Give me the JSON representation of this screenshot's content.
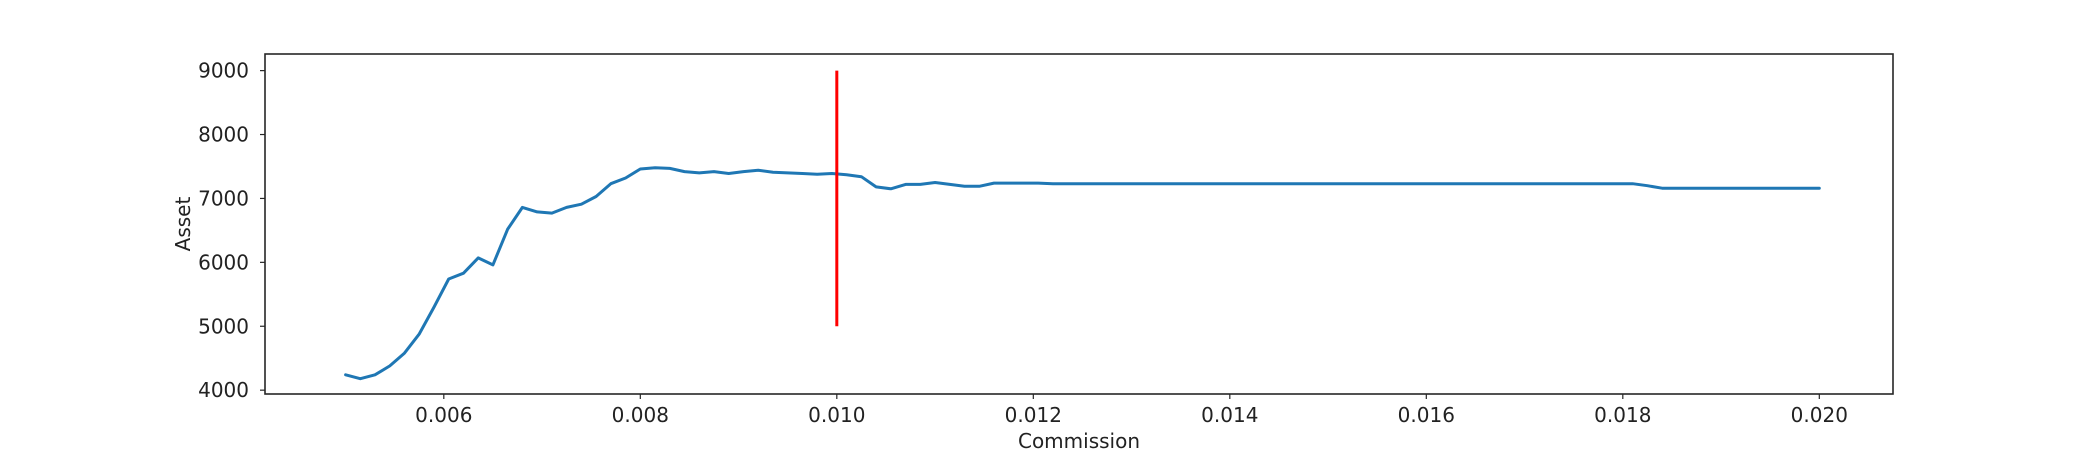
{
  "chart_data": {
    "type": "line",
    "title": "",
    "xlabel": "Commission",
    "ylabel": "Asset",
    "xlim": [
      0.00418,
      0.02075
    ],
    "ylim": [
      3940,
      9260
    ],
    "xticks": [
      0.006,
      0.008,
      0.01,
      0.012,
      0.014,
      0.016,
      0.018,
      0.02
    ],
    "xtick_labels": [
      "0.006",
      "0.008",
      "0.010",
      "0.012",
      "0.014",
      "0.016",
      "0.018",
      "0.020"
    ],
    "yticks": [
      4000,
      5000,
      6000,
      7000,
      8000,
      9000
    ],
    "ytick_labels": [
      "4000",
      "5000",
      "6000",
      "7000",
      "8000",
      "9000"
    ],
    "grid": false,
    "series": [
      {
        "color": "#1f77b4",
        "x": [
          0.005,
          0.00515,
          0.0053,
          0.00545,
          0.0056,
          0.00575,
          0.0059,
          0.00605,
          0.0062,
          0.00635,
          0.0065,
          0.00665,
          0.0068,
          0.00695,
          0.0071,
          0.00725,
          0.0074,
          0.00755,
          0.0077,
          0.00785,
          0.008,
          0.00815,
          0.0083,
          0.00845,
          0.0086,
          0.00875,
          0.0089,
          0.00905,
          0.0092,
          0.00935,
          0.0095,
          0.00965,
          0.0098,
          0.00995,
          0.0101,
          0.01025,
          0.0104,
          0.01055,
          0.0107,
          0.01085,
          0.011,
          0.01115,
          0.0113,
          0.01145,
          0.0116,
          0.01175,
          0.0119,
          0.01205,
          0.0122,
          0.015,
          0.0181,
          0.01825,
          0.0184,
          0.02
        ],
        "y": [
          4240,
          4180,
          4240,
          4380,
          4580,
          4880,
          5300,
          5740,
          5830,
          6070,
          5960,
          6520,
          6860,
          6790,
          6770,
          6860,
          6910,
          7030,
          7230,
          7320,
          7460,
          7480,
          7470,
          7420,
          7400,
          7420,
          7390,
          7420,
          7440,
          7410,
          7400,
          7390,
          7380,
          7390,
          7370,
          7340,
          7180,
          7150,
          7220,
          7220,
          7250,
          7220,
          7190,
          7190,
          7240,
          7240,
          7240,
          7240,
          7230,
          7230,
          7230,
          7200,
          7160,
          7160
        ]
      }
    ],
    "annotations": [
      {
        "kind": "vertical-line",
        "color": "#ff0000",
        "x": 0.01,
        "y_from": 5000,
        "y_to": 9000
      }
    ]
  }
}
